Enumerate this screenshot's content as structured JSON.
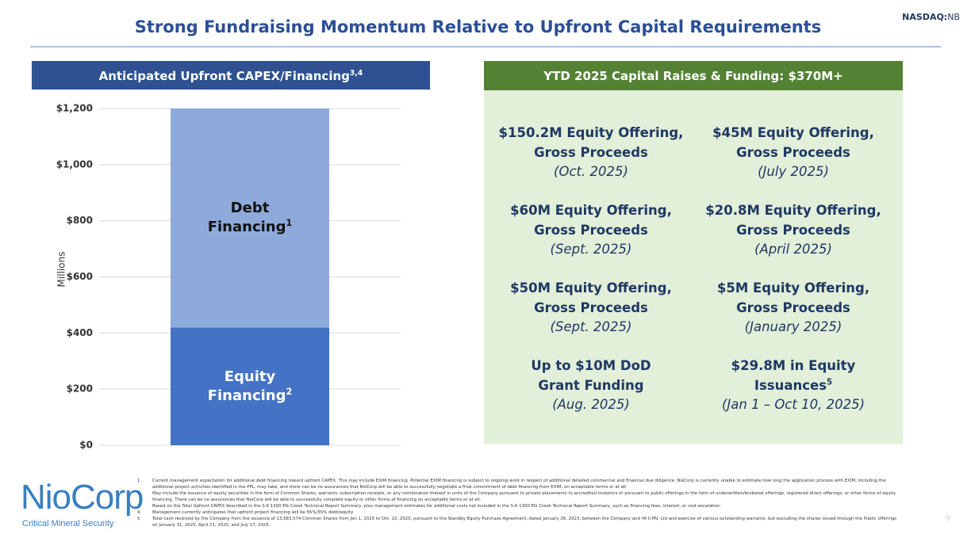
{
  "header": {
    "title": "Strong Fundraising Momentum Relative to Upfront Capital Requirements",
    "ticker_prefix": "NASDAQ:",
    "ticker": "NB"
  },
  "left_panel": {
    "title": "Anticipated Upfront CAPEX/Financing",
    "title_note": "3,4"
  },
  "chart_data": {
    "type": "stacked_bar",
    "y_label": "Millions",
    "categories": [
      null
    ],
    "series": [
      {
        "name": "Equity Financing",
        "note": "2",
        "color": "#4472c4",
        "values": [
          420
        ]
      },
      {
        "name": "Debt Financing",
        "note": "1",
        "color": "#8eaadb",
        "values": [
          780
        ]
      }
    ],
    "ylim": [
      0,
      1200
    ],
    "yticks": [
      {
        "value": 0,
        "label": "$0"
      },
      {
        "value": 200,
        "label": "$200"
      },
      {
        "value": 400,
        "label": "$400"
      },
      {
        "value": 600,
        "label": "$600"
      },
      {
        "value": 800,
        "label": "$800"
      },
      {
        "value": 1000,
        "label": "$1,000"
      },
      {
        "value": 1200,
        "label": "$1,200"
      }
    ],
    "grid": true
  },
  "right_panel": {
    "title": "YTD 2025 Capital Raises & Funding: $370M+",
    "items": [
      {
        "lines": [
          "$150.2M Equity Offering,",
          "Gross Proceeds"
        ],
        "date": "(Oct. 2025)"
      },
      {
        "lines": [
          "$45M Equity Offering,",
          "Gross Proceeds"
        ],
        "date": "(July 2025)"
      },
      {
        "lines": [
          "$60M Equity Offering,",
          "Gross Proceeds"
        ],
        "date": "(Sept. 2025)"
      },
      {
        "lines": [
          "$20.8M Equity Offering,",
          "Gross Proceeds"
        ],
        "date": "(April 2025)"
      },
      {
        "lines": [
          "$50M Equity Offering,",
          "Gross Proceeds"
        ],
        "date": "(Sept. 2025)"
      },
      {
        "lines": [
          "$5M Equity Offering,",
          "Gross Proceeds"
        ],
        "date": "(January 2025)"
      },
      {
        "lines": [
          "Up to $10M DoD",
          "Grant Funding"
        ],
        "date": "(Aug. 2025)"
      },
      {
        "lines": [
          "$29.8M in Equity",
          "Issuances"
        ],
        "note": "5",
        "date": "(Jan 1 –  Oct 10, 2025)"
      }
    ]
  },
  "footnotes": [
    {
      "num": "1",
      "text": "Current management expectation for additional debt financing toward upfront CAPEX. This may include EXIM financing. Potential EXIM financing is subject to ongoing work in respect of additional detailed commercial and financial due diligence. NioCorp is currently unable to estimate how long the application process with EXIM, including the additional project activities identified in the PPL, may take, and there can be no assurances that NioCorp will be able to successfully negotiate a final commitment of debt financing from EXIM, on acceptable terms or at all."
    },
    {
      "num": "2",
      "text": "May include the issuance of equity securities in the form of Common Shares, warrants, subscription receipts, or any combination thereof in units of the Company pursuant to private placements to accredited investors or pursuant to public offerings in the form of underwritten/brokered offerings, registered direct offerings, or other forms of equity financing. There can be no assurances that NioCorp will be able to successfully complete equity or other forms of financing on acceptable terms or at all."
    },
    {
      "num": "3",
      "text": "Based on the Total Upfront CAPEX described in the S-K 1300 Elk Creek Technical Report Summary, plus management estimates for additional costs not included in the S-K 1300 Elk Creek Technical Report Summary, such as financing fees, interest, or cost escalation."
    },
    {
      "num": "4",
      "text": "Management currently anticipates that upfront project financing will be 65%/35% debt/equity."
    },
    {
      "num": "5",
      "text": "Total cash received by the Company from the issuance of 13,583,574 Common Shares from Jan 1, 2025 to Oct. 10, 2025, pursuant to the Standby Equity Purchase Agreement, dated January 26, 2023, between the Company and YA II PN, Ltd and exercise of various outstanding warrants, but excluding the shares issued through the Public offerings on January 31, 2025, April 21, 2025, and July 17, 2025."
    }
  ],
  "logo": {
    "name": "NioCorp",
    "tagline": "Critical Mineral Security"
  },
  "page_number": "9"
}
